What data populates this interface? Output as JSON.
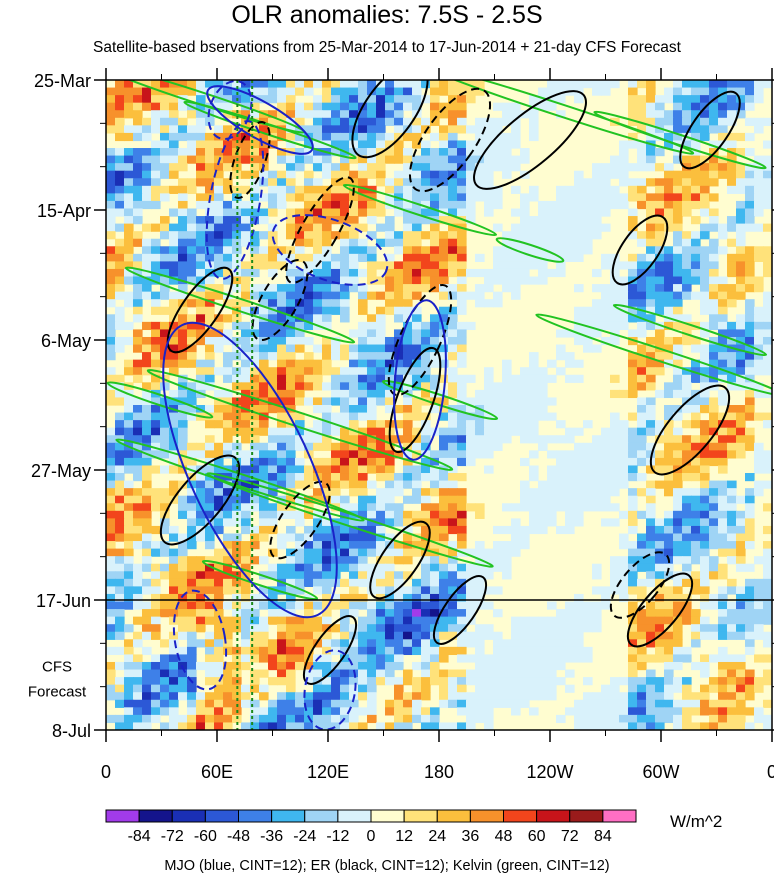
{
  "title": "OLR anomalies: 7.5S - 2.5S",
  "subtitle": "Satellite-based bservations from 25-Mar-2014 to 17-Jun-2014 + 21-day CFS Forecast",
  "footnote": "MJO (blue, CINT=12); ER (black, CINT=12); Kelvin (green, CINT=12)",
  "chart_data": {
    "type": "heatmap",
    "x_tick_labels": [
      "0",
      "60E",
      "120E",
      "180",
      "120W",
      "60W",
      "0"
    ],
    "x_ticks_deg": [
      0,
      60,
      120,
      180,
      240,
      300,
      360
    ],
    "y_tick_labels": [
      "25-Mar",
      "15-Apr",
      "6-May",
      "27-May",
      "17-Jun",
      "8-Jul"
    ],
    "y_ticks_dates": [
      "2014-03-25",
      "2014-04-15",
      "2014-05-06",
      "2014-05-27",
      "2014-06-17",
      "2014-07-08"
    ],
    "x_range_deg": [
      0,
      360
    ],
    "date_range": [
      "2014-03-25",
      "2014-07-08"
    ],
    "observation_end": "2014-06-17",
    "forecast_label": "CFS\nForecast",
    "colorbar": {
      "units": "W/m^2",
      "labels": [
        "-84",
        "-72",
        "-60",
        "-48",
        "-36",
        "-24",
        "-12",
        "0",
        "12",
        "24",
        "36",
        "48",
        "60",
        "72",
        "84"
      ],
      "colors": [
        "#a23bea",
        "#14148c",
        "#1a2fb5",
        "#2c58d6",
        "#3e80e8",
        "#3fb7ef",
        "#9fd4f5",
        "#d9f2fb",
        "#fffdd0",
        "#ffe27a",
        "#fbbf3d",
        "#f7912b",
        "#f2451c",
        "#c8141a",
        "#9a1b1b",
        "#ff6fc4"
      ]
    },
    "overlays": [
      {
        "name": "MJO",
        "color": "#1a22c8"
      },
      {
        "name": "ER",
        "color": "#000000"
      },
      {
        "name": "Kelvin",
        "color": "#22c322"
      }
    ],
    "reference_lines": {
      "vertical_dotted_deg": [
        71,
        79
      ],
      "vertical_dotted_color": "#1a8a1a"
    }
  }
}
